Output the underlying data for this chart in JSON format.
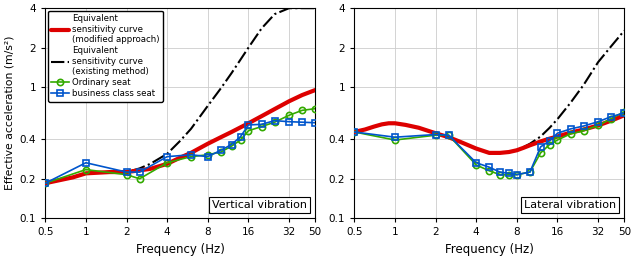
{
  "freq_ticks": [
    0.5,
    1,
    2,
    4,
    8,
    16,
    32,
    50
  ],
  "ylim": [
    0.1,
    4
  ],
  "yticks": [
    0.1,
    0.2,
    0.4,
    1.0,
    2.0,
    4.0
  ],
  "xlabel": "Frequency (Hz)",
  "ylabel": "Effective acceleration (m/s²)",
  "legend_labels": [
    "Equivalent\nsensitivity curve\n(modified approach)",
    "Equivalent\nsensitivity curve\n(existing method)",
    "Ordinary seat",
    "business class seat"
  ],
  "panel_labels": [
    "Vertical vibration",
    "Lateral vibration"
  ],
  "vertical": {
    "red_freq": [
      0.5,
      0.8,
      1.0,
      1.5,
      2.0,
      2.5,
      3.0,
      4.0,
      5.0,
      6.0,
      8.0,
      10.0,
      12.0,
      16.0,
      20.0,
      25.0,
      32.0,
      40.0,
      50.0
    ],
    "red_vals": [
      0.185,
      0.205,
      0.22,
      0.225,
      0.225,
      0.232,
      0.238,
      0.26,
      0.29,
      0.315,
      0.37,
      0.415,
      0.455,
      0.53,
      0.6,
      0.68,
      0.78,
      0.87,
      0.95
    ],
    "black_freq": [
      0.5,
      0.8,
      1.0,
      1.5,
      2.0,
      2.5,
      3.0,
      4.0,
      5.0,
      6.0,
      8.0,
      10.0,
      12.0,
      16.0,
      20.0,
      25.0,
      32.0,
      40.0,
      50.0
    ],
    "black_vals": [
      0.185,
      0.205,
      0.22,
      0.225,
      0.225,
      0.24,
      0.26,
      0.31,
      0.39,
      0.48,
      0.72,
      0.98,
      1.28,
      2.0,
      2.8,
      3.6,
      4.0,
      4.0,
      4.0
    ],
    "ordinary_freq": [
      0.5,
      1.0,
      2.0,
      2.5,
      4.0,
      6.0,
      8.0,
      10.0,
      12.0,
      14.0,
      16.0,
      20.0,
      25.0,
      32.0,
      40.0,
      50.0
    ],
    "ordinary_vals": [
      0.185,
      0.235,
      0.215,
      0.2,
      0.265,
      0.295,
      0.305,
      0.32,
      0.355,
      0.395,
      0.465,
      0.5,
      0.54,
      0.61,
      0.665,
      0.685
    ],
    "business_freq": [
      0.5,
      1.0,
      2.0,
      2.5,
      4.0,
      6.0,
      8.0,
      10.0,
      12.0,
      14.0,
      16.0,
      20.0,
      25.0,
      32.0,
      40.0,
      50.0
    ],
    "business_vals": [
      0.185,
      0.265,
      0.225,
      0.225,
      0.295,
      0.305,
      0.295,
      0.33,
      0.365,
      0.42,
      0.515,
      0.52,
      0.555,
      0.545,
      0.54,
      0.535
    ]
  },
  "lateral": {
    "red_freq": [
      0.5,
      0.6,
      0.7,
      0.8,
      0.9,
      1.0,
      1.2,
      1.5,
      2.0,
      2.5,
      3.0,
      4.0,
      5.0,
      6.0,
      7.0,
      8.0,
      9.0,
      10.0,
      12.0,
      14.0,
      16.0,
      20.0,
      25.0,
      32.0,
      40.0,
      50.0
    ],
    "red_vals": [
      0.455,
      0.475,
      0.5,
      0.52,
      0.53,
      0.53,
      0.515,
      0.49,
      0.445,
      0.415,
      0.385,
      0.34,
      0.315,
      0.315,
      0.32,
      0.33,
      0.345,
      0.36,
      0.385,
      0.405,
      0.42,
      0.45,
      0.475,
      0.51,
      0.555,
      0.61
    ],
    "black_freq": [
      0.5,
      0.6,
      0.7,
      0.8,
      0.9,
      1.0,
      1.2,
      1.5,
      2.0,
      2.5,
      3.0,
      4.0,
      5.0,
      6.0,
      7.0,
      8.0,
      9.0,
      10.0,
      12.0,
      14.0,
      16.0,
      20.0,
      25.0,
      32.0,
      40.0,
      50.0
    ],
    "black_vals": [
      0.455,
      0.475,
      0.5,
      0.52,
      0.53,
      0.53,
      0.515,
      0.49,
      0.445,
      0.415,
      0.385,
      0.34,
      0.315,
      0.315,
      0.32,
      0.33,
      0.35,
      0.37,
      0.42,
      0.49,
      0.57,
      0.76,
      1.04,
      1.55,
      2.05,
      2.7
    ],
    "ordinary_freq": [
      0.5,
      1.0,
      2.0,
      2.5,
      4.0,
      5.0,
      6.0,
      7.0,
      8.0,
      10.0,
      12.0,
      14.0,
      16.0,
      20.0,
      25.0,
      32.0,
      40.0,
      50.0
    ],
    "ordinary_vals": [
      0.455,
      0.395,
      0.43,
      0.43,
      0.255,
      0.23,
      0.215,
      0.215,
      0.215,
      0.225,
      0.315,
      0.365,
      0.395,
      0.44,
      0.465,
      0.51,
      0.575,
      0.65
    ],
    "business_freq": [
      0.5,
      1.0,
      2.0,
      2.5,
      4.0,
      5.0,
      6.0,
      7.0,
      8.0,
      10.0,
      12.0,
      14.0,
      16.0,
      20.0,
      25.0,
      32.0,
      40.0,
      50.0
    ],
    "business_vals": [
      0.455,
      0.415,
      0.435,
      0.43,
      0.265,
      0.245,
      0.225,
      0.22,
      0.215,
      0.225,
      0.35,
      0.39,
      0.445,
      0.48,
      0.505,
      0.545,
      0.595,
      0.635
    ]
  },
  "red_color": "#dd0000",
  "black_color": "#000000",
  "green_color": "#33aa00",
  "blue_color": "#0055cc",
  "bg_color": "#ffffff",
  "grid_color": "#cccccc"
}
